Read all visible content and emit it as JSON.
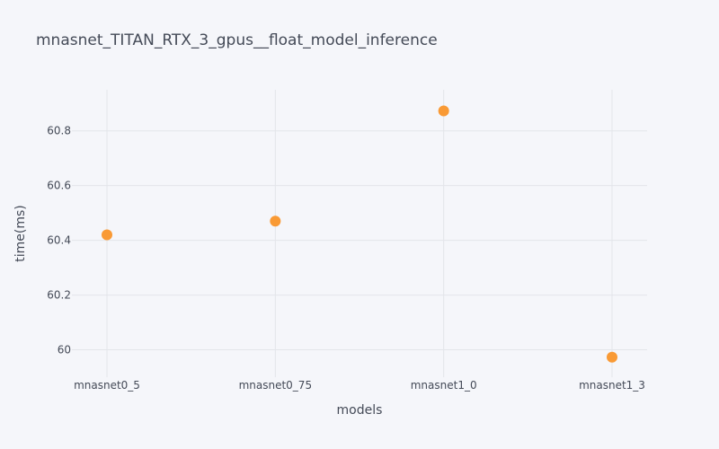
{
  "chart_data": {
    "type": "scatter",
    "title": "mnasnet_TITAN_RTX_3_gpus__float_model_inference",
    "xlabel": "models",
    "ylabel": "time(ms)",
    "categories": [
      "mnasnet0_5",
      "mnasnet0_75",
      "mnasnet1_0",
      "mnasnet1_3"
    ],
    "values": [
      60.42,
      60.47,
      60.873,
      59.973
    ],
    "ylim": [
      59.9,
      60.95
    ],
    "yticks": [
      60,
      60.2,
      60.4,
      60.6,
      60.8
    ],
    "ytick_labels": [
      "60",
      "60.2",
      "60.4",
      "60.6",
      "60.8"
    ],
    "grid": true,
    "marker_color": "#f99a35"
  }
}
